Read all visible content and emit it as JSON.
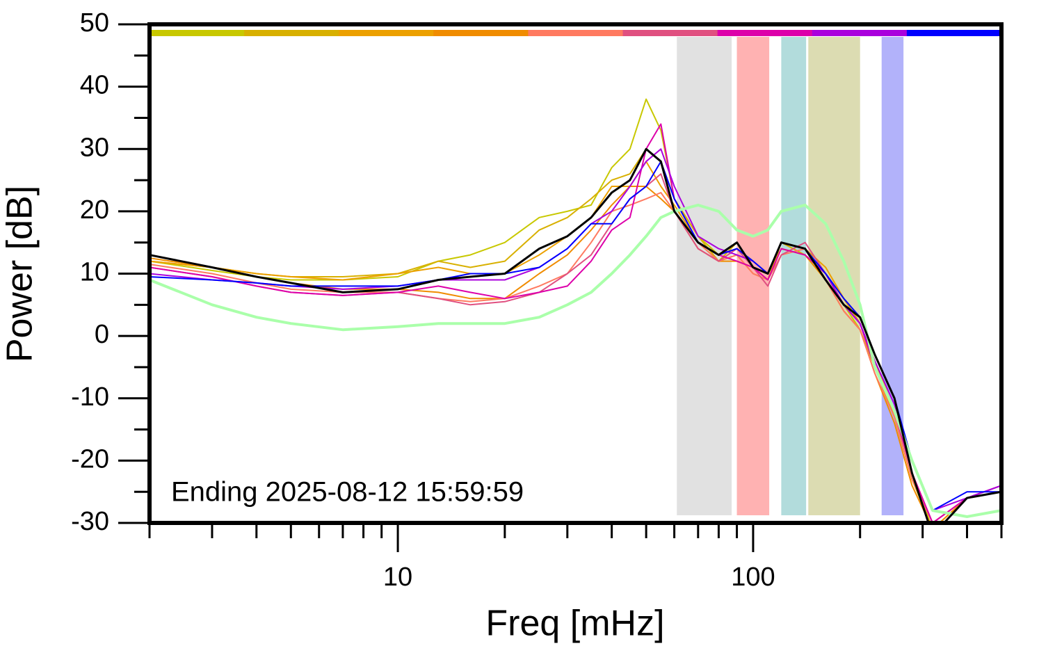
{
  "chart_data": {
    "type": "line",
    "xlabel": "Freq [mHz]",
    "ylabel": "Power [dB]",
    "annotation": "Ending 2025-08-12 15:59:59",
    "log_x": true,
    "xlim": [
      2,
      500
    ],
    "ylim": [
      -30,
      50
    ],
    "xticks": [
      10,
      100
    ],
    "xminorticks": [
      2,
      3,
      4,
      5,
      6,
      7,
      8,
      9,
      20,
      30,
      40,
      50,
      60,
      70,
      80,
      90,
      200,
      300,
      400,
      500
    ],
    "yticks": [
      -30,
      -20,
      -10,
      0,
      10,
      20,
      30,
      40,
      50
    ],
    "yminorticks": [
      -25,
      -15,
      -5,
      5,
      15,
      25,
      35,
      45
    ],
    "bands": [
      {
        "range": [
          61,
          87
        ],
        "color": "#e1e1e1"
      },
      {
        "range": [
          90,
          111
        ],
        "color": "#ffb2b2"
      },
      {
        "range": [
          120,
          141
        ],
        "color": "#b2dcdc"
      },
      {
        "range": [
          143,
          200
        ],
        "color": "#dcdcb2"
      },
      {
        "range": [
          230,
          265
        ],
        "color": "#b2b2fa"
      }
    ],
    "top_bar_colors": [
      "#c8c800",
      "#d8b000",
      "#eca000",
      "#f08c00",
      "#ff7a60",
      "#e05080",
      "#dd00aa",
      "#aa00dd",
      "#0000ff"
    ],
    "x": [
      2,
      3,
      4,
      5,
      7,
      10,
      13,
      16,
      20,
      25,
      30,
      35,
      40,
      45,
      50,
      55,
      60,
      70,
      80,
      90,
      100,
      110,
      120,
      140,
      160,
      180,
      200,
      220,
      250,
      280,
      320,
      400,
      500
    ],
    "series": [
      {
        "color": "#c8c800",
        "width": 2,
        "values": [
          12,
          10.5,
          9.5,
          9,
          9,
          9.5,
          12,
          13,
          15,
          19,
          20,
          21,
          27,
          30,
          38,
          33,
          22,
          16,
          13,
          14,
          12,
          10,
          14,
          13,
          9,
          5,
          1,
          -5,
          -12,
          -22,
          -31,
          -26,
          -25
        ]
      },
      {
        "color": "#d8b000",
        "width": 2,
        "values": [
          12,
          11,
          10,
          9.5,
          9.5,
          10,
          12,
          11,
          12,
          17,
          19,
          22,
          25,
          26,
          30,
          28,
          22,
          16,
          12,
          15,
          11,
          9,
          15,
          13,
          10,
          6,
          2,
          -5,
          -13,
          -23,
          -31,
          -26,
          -25
        ]
      },
      {
        "color": "#eca000",
        "width": 2,
        "values": [
          12,
          11,
          10,
          9.5,
          9,
          10,
          11,
          10,
          10,
          13,
          16,
          19,
          24,
          24,
          28,
          24,
          21,
          15,
          12,
          13,
          10,
          9,
          15,
          14,
          11,
          6,
          2,
          -4,
          -12,
          -22,
          -30,
          -26,
          -25
        ]
      },
      {
        "color": "#f08c00",
        "width": 2,
        "values": [
          12.5,
          11,
          9.5,
          8.5,
          7.5,
          7.5,
          7,
          6,
          6,
          10,
          13,
          17,
          21,
          24,
          24,
          22,
          20,
          14,
          12,
          12,
          11,
          9,
          14,
          13,
          9,
          4,
          1,
          -6,
          -14,
          -24,
          -31,
          -26,
          -24
        ]
      },
      {
        "color": "#ff7a60",
        "width": 2,
        "values": [
          11.5,
          10,
          8.5,
          7.5,
          7,
          7,
          6,
          5.5,
          6,
          8,
          10,
          15,
          20,
          21,
          22,
          23,
          20,
          15,
          12,
          13,
          10,
          9,
          13,
          14,
          9,
          4,
          1,
          -6,
          -13,
          -23,
          -30,
          -26,
          -25
        ]
      },
      {
        "color": "#e05080",
        "width": 2,
        "values": [
          11,
          9.5,
          8,
          7,
          6.5,
          7,
          6,
          5,
          5.5,
          7,
          10,
          13,
          18,
          22,
          24,
          26,
          20,
          14,
          12,
          14,
          11,
          8,
          13,
          15,
          10,
          5,
          2,
          -5,
          -12,
          -22,
          -30,
          -26,
          -25
        ]
      },
      {
        "color": "#dd00aa",
        "width": 2,
        "values": [
          11,
          9.5,
          8,
          7,
          6.5,
          7,
          8,
          7,
          6,
          7,
          8,
          12,
          17,
          19,
          30,
          34,
          22,
          15,
          13,
          12,
          11,
          9,
          14,
          13,
          10,
          5,
          2,
          -5,
          -12,
          -22,
          -30,
          -26,
          -24
        ]
      },
      {
        "color": "#aa00dd",
        "width": 2,
        "values": [
          10,
          9,
          8.5,
          8,
          7.5,
          8,
          9,
          9,
          9,
          11,
          14,
          18,
          20,
          24,
          28,
          30,
          24,
          16,
          14,
          13,
          12,
          10,
          15,
          14,
          10,
          5,
          2,
          -4,
          -11,
          -20,
          -28,
          -26,
          -24
        ]
      },
      {
        "color": "#0000ff",
        "width": 2,
        "values": [
          9.5,
          9,
          8.5,
          8,
          8,
          8,
          9,
          10,
          10,
          11,
          14,
          18,
          18,
          22,
          24,
          28,
          22,
          15,
          13,
          14,
          12,
          10,
          15,
          14,
          10,
          6,
          3,
          -3,
          -10,
          -20,
          -28,
          -25,
          -25
        ]
      },
      {
        "color": "#aaffaa",
        "width": 4,
        "values": [
          9,
          5,
          3,
          2,
          1,
          1.5,
          2,
          2,
          2,
          3,
          5,
          7,
          10,
          13,
          16,
          19,
          20,
          21,
          20,
          17,
          16,
          17,
          20,
          21,
          18,
          12,
          5,
          -5,
          -12,
          -20,
          -28,
          -29,
          -28
        ]
      },
      {
        "color": "#000000",
        "width": 3,
        "values": [
          13,
          11,
          9.5,
          8.5,
          7,
          7.5,
          9,
          9.5,
          10,
          14,
          16,
          19,
          23,
          25,
          30,
          28,
          20,
          15,
          13,
          15,
          11,
          10,
          15,
          14,
          9,
          5,
          3,
          -3,
          -10,
          -22,
          -32,
          -26,
          -25
        ]
      }
    ]
  }
}
